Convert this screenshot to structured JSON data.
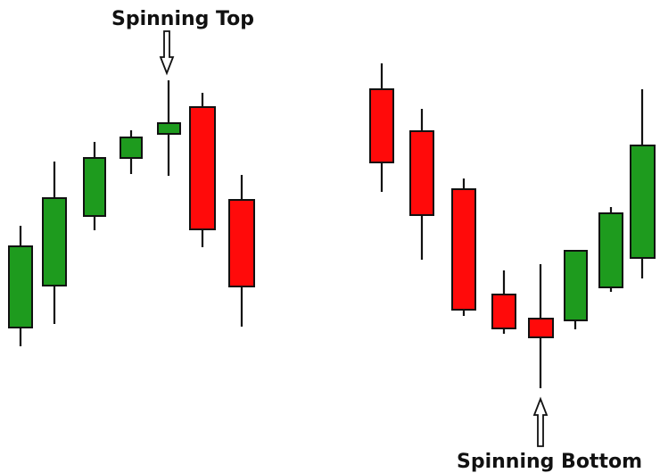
{
  "annotations": {
    "top": "Spinning Top",
    "bottom": "Spinning Bottom"
  }
}
